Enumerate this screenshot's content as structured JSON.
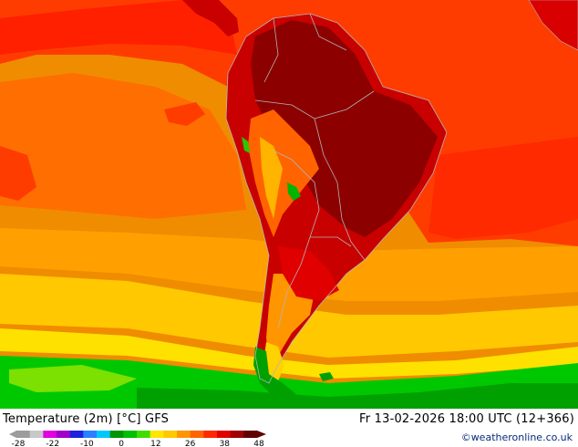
{
  "map": {
    "title": "Temperature (2m) [°C] GFS",
    "datetime": "Fr 13-02-2026 18:00 UTC (12+366)",
    "credit": "©weatheronline.co.uk",
    "legend": {
      "tick_labels": [
        "-28",
        "-22",
        "-10",
        "0",
        "12",
        "26",
        "38",
        "48"
      ],
      "colors": [
        "#9c9c9c",
        "#c8c8c8",
        "#e000e0",
        "#a000c8",
        "#2020e0",
        "#2a80ff",
        "#00c8ff",
        "#009600",
        "#00c000",
        "#40dc00",
        "#ffe600",
        "#ffc800",
        "#ff9600",
        "#ff6400",
        "#ff2800",
        "#e00000",
        "#a00000",
        "#600000"
      ]
    },
    "colors": {
      "ocean_warm": "#f08c00",
      "ocean_hot": "#ff3c00",
      "land_hot": "#c80000",
      "land_very_hot": "#8c0000",
      "temperate": "#ffb400",
      "cool": "#ffd700",
      "cold_green": "#00c800",
      "very_cold": "#00a000",
      "borders": "#b4b4b4"
    }
  }
}
